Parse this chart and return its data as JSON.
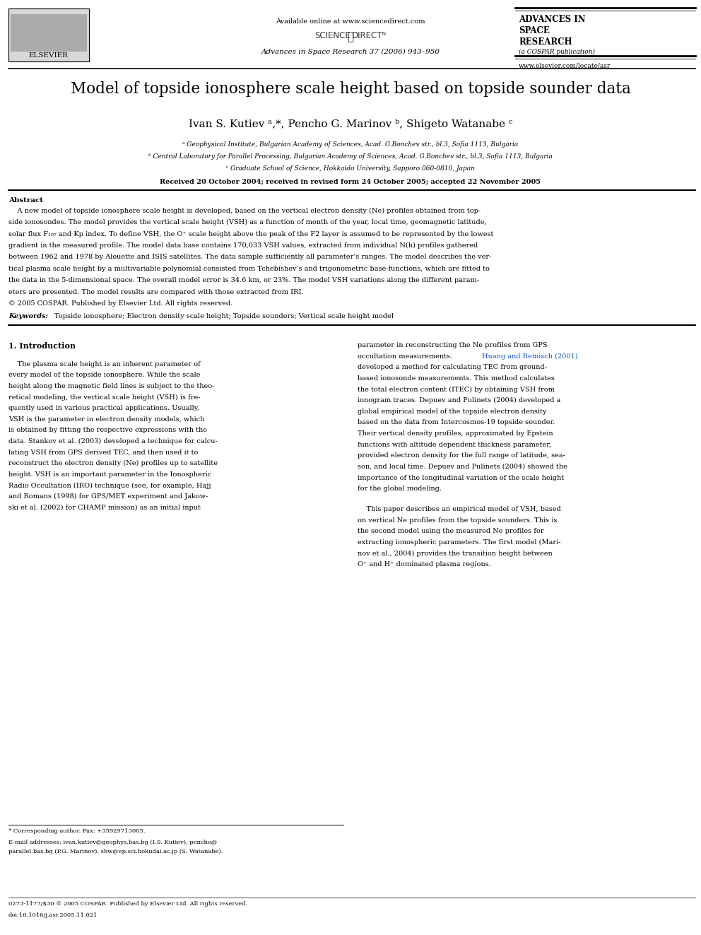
{
  "bg_color": "#ffffff",
  "page_width": 9.92,
  "page_height": 13.23,
  "header_available_online": "Available online at www.sciencedirect.com",
  "journal_line": "Advances in Space Research 37 (2006) 943–950",
  "journal_name_lines": [
    "ADVANCES IN",
    "SPACE",
    "RESEARCH",
    "(a COSPAR publication)"
  ],
  "website": "www.elsevier.com/locate/asr",
  "elsevier_text": "ELSEVIER",
  "paper_title": "Model of topside ionosphere scale height based on topside sounder data",
  "authors": "Ivan S. Kutiev ᵃ,*, Pencho G. Marinov ᵇ, Shigeto Watanabe ᶜ",
  "affil_a": "ᵃ Geophysical Institute, Bulgarian Academy of Sciences, Acad. G.Bonchev str., bl.3, Sofia 1113, Bulgaria",
  "affil_b": "ᵇ Central Laboratory for Parallel Processing, Bulgarian Academy of Sciences, Acad. G.Bonchev str., bl.3, Sofia 1113, Bulgaria",
  "affil_c": "ᶜ Graduate School of Science, Hokkaido University, Sapporo 060-0810, Japan",
  "received_line": "Received 20 October 2004; received in revised form 24 October 2005; accepted 22 November 2005",
  "abstract_heading": "Abstract",
  "keywords_label": "Keywords:",
  "keywords_text": "Topside ionosphere; Electron density scale height; Topside sounders; Vertical scale height model",
  "section1_heading": "1. Introduction",
  "footnote_star": "* Corresponding author. Fax: +35929713005.",
  "footnote_email_line1": "E-mail addresses: ivan.kutiev@geophys.bas.bg (I.S. Kutiev), pencho@",
  "footnote_email_line2": "parallel.bas.bg (P.G. Marinov), shw@ep.sci.hokudai.ac.jp (S. Watanabe).",
  "footer_line1": "0273-1177/$30 © 2005 COSPAR. Published by Elsevier Ltd. All rights reserved.",
  "footer_line2": "doi:10.1016/j.asr.2005.11.021",
  "link_color": "#1155cc",
  "text_color": "#000000",
  "abstract_lines": [
    "    A new model of topside ionosphere scale height is developed, based on the vertical electron density (Ne) profiles obtained from top-",
    "side ionosondes. The model provides the vertical scale height (VSH) as a function of month of the year, local time, geomagnetic latitude,",
    "solar flux F₁₀₇ and Kp index. To define VSH, the O⁺ scale height above the peak of the F2 layer is assumed to be represented by the lowest",
    "gradient in the measured profile. The model data base contains 170,033 VSH values, extracted from individual N(h) profiles gathered",
    "between 1962 and 1978 by Alouette and ISIS satellites. The data sample sufficiently all parameter’s ranges. The model describes the ver-",
    "tical plasma scale height by a multivariable polynomial consisted from Tchebishev’s and trigonometric base-functions, which are fitted to",
    "the data in the 5-dimensional space. The overall model error is 34.6 km, or 23%. The model VSH variations along the different param-",
    "eters are presented. The model results are compared with those extracted from IRI.",
    "© 2005 COSPAR. Published by Elsevier Ltd. All rights reserved."
  ],
  "col1_lines": [
    "    The plasma scale height is an inherent parameter of",
    "every model of the topside ionosphere. While the scale",
    "height along the magnetic field lines is subject to the theo-",
    "retical modeling, the vertical scale height (VSH) is fre-",
    "quently used in various practical applications. Usually,",
    "VSH is the parameter in electron density models, which",
    "is obtained by fitting the respective expressions with the",
    "data. Stankov et al. (2003) developed a technique for calcu-",
    "lating VSH from GPS derived TEC, and then used it to",
    "reconstruct the electron density (Ne) profiles up to satellite",
    "height. VSH is an important parameter in the Ionospheric",
    "Radio Occultation (IRO) technique (see, for example, Hajj",
    "and Romans (1998) for GPS/MET experiment and Jakow-",
    "ski et al. (2002) for CHAMP mission) as an initial input"
  ],
  "col1_link_words": [
    "Stankov et al. (2003)",
    "Hajj",
    "and Romans (1998)",
    "Jakow-",
    "ski et al. (2002)"
  ],
  "col2_lines_p1": [
    "parameter in reconstructing the Ne profiles from GPS",
    "occultation measurements. Huang and Reinisch (2001)",
    "developed a method for calculating TEC from ground-",
    "based ionosonde measurements. This method calculates",
    "the total electron content (ITEC) by obtaining VSH from",
    "ionogram traces. Depuev and Pulinets (2004) developed a",
    "global empirical model of the topside electron density",
    "based on the data from Intercosmos-19 topside sounder.",
    "Their vertical density profiles, approximated by Epstein",
    "functions with altitude dependent thickness parameter,",
    "provided electron density for the full range of latitude, sea-",
    "son, and local time. Depuev and Pulinets (2004) showed the",
    "importance of the longitudinal variation of the scale height",
    "for the global modeling."
  ],
  "col2_lines_p2": [
    "    This paper describes an empirical model of VSH, based",
    "on vertical Ne profiles from the topside sounders. This is",
    "the second model using the measured Ne profiles for",
    "extracting ionospheric parameters. The first model (Mari-",
    "nov et al., 2004) provides the transition height between",
    "O⁺ and H⁺ dominated plasma regions."
  ]
}
